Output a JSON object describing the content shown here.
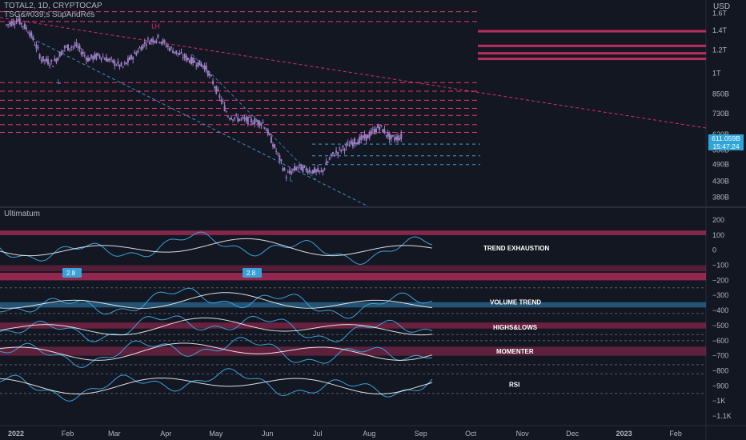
{
  "header": {
    "symbol_line": "TOTAL2, 1D, CRYPTOCAP",
    "indicator_line": "TSG&#039;s SupAndRes",
    "currency": "USD",
    "sub_pane_title": "Ultimatum"
  },
  "price_badge": {
    "price": "611.059B",
    "countdown": "15:47:24",
    "color": "#2fa4d9"
  },
  "colors": {
    "background": "#131722",
    "candle": "#9b7fc4",
    "resistance": "#e8336b",
    "support": "#3aa0d8",
    "separator": "#2a2e39"
  },
  "chart_data": [
    {
      "type": "line",
      "title": "TOTAL2, 1D, CRYPTOCAP",
      "x": [
        "2022-01-01",
        "2022-01-08",
        "2022-01-15",
        "2022-01-22",
        "2022-01-29",
        "2022-02-05",
        "2022-02-12",
        "2022-02-19",
        "2022-02-26",
        "2022-03-05",
        "2022-03-12",
        "2022-03-19",
        "2022-03-26",
        "2022-04-02",
        "2022-04-09",
        "2022-04-16",
        "2022-04-23",
        "2022-04-30",
        "2022-05-07",
        "2022-05-14",
        "2022-05-21",
        "2022-05-28",
        "2022-06-04",
        "2022-06-11",
        "2022-06-18",
        "2022-06-25",
        "2022-07-02",
        "2022-07-09",
        "2022-07-16",
        "2022-07-23",
        "2022-07-30",
        "2022-08-06",
        "2022-08-13",
        "2022-08-20",
        "2022-08-27"
      ],
      "series": [
        {
          "values": [
            1.46,
            1.52,
            1.38,
            1.12,
            1.08,
            1.22,
            1.24,
            1.12,
            1.15,
            1.1,
            1.05,
            1.16,
            1.28,
            1.32,
            1.22,
            1.15,
            1.1,
            1.06,
            0.88,
            0.72,
            0.7,
            0.69,
            0.68,
            0.56,
            0.45,
            0.48,
            0.47,
            0.46,
            0.53,
            0.56,
            0.59,
            0.61,
            0.66,
            0.6,
            0.611
          ]
        }
      ],
      "annotations": [
        "LH",
        "L",
        "L"
      ],
      "y_ticks": [
        "1.6T",
        "1.4T",
        "1.2T",
        "1T",
        "850B",
        "730B",
        "620B",
        "550B",
        "490B",
        "430B",
        "380B"
      ],
      "x_ticks": [
        "2022",
        "Feb",
        "Mar",
        "Apr",
        "May",
        "Jun",
        "Jul",
        "Aug",
        "Sep",
        "Oct",
        "Nov",
        "Dec",
        "2023",
        "Feb"
      ],
      "scale": "log"
    },
    {
      "type": "line",
      "title": "Ultimatum",
      "panels": [
        "TREND EXHAUSTION",
        "VOLUME TREND",
        "HIGHS&LOWS",
        "MOMENTER",
        "RSI"
      ],
      "badges": [
        "2.8",
        "2.8"
      ],
      "y_ticks": [
        "200",
        "100",
        "0",
        "−100",
        "−200",
        "−300",
        "−400",
        "−500",
        "−600",
        "−700",
        "−800",
        "−900",
        "−1K",
        "−1.1K"
      ],
      "ylim": [
        -1100,
        200
      ]
    }
  ]
}
